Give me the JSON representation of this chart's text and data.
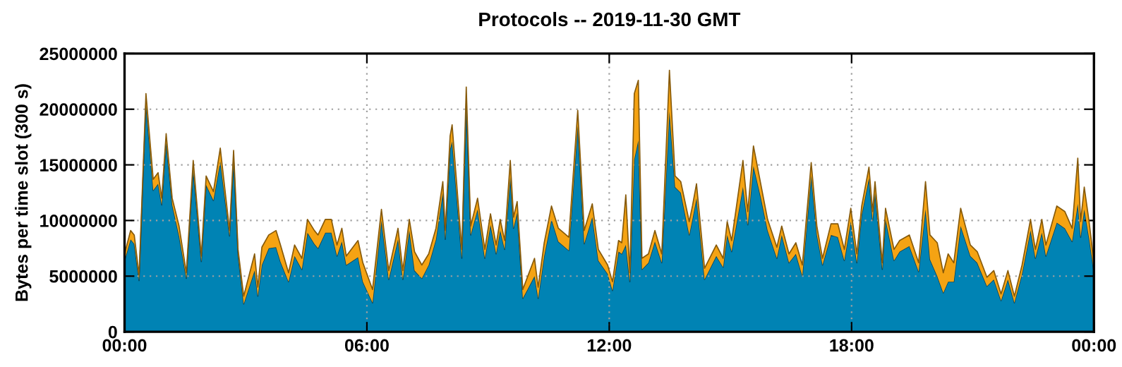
{
  "chart_data": {
    "type": "area",
    "stacked": true,
    "title": "Protocols -- 2019-11-30 GMT",
    "ylabel": "Bytes per time slot (300 s)",
    "x": [
      0,
      0.15,
      0.24,
      0.36,
      0.53,
      0.71,
      0.83,
      0.92,
      1.03,
      1.18,
      1.35,
      1.53,
      1.7,
      1.9,
      2.02,
      2.2,
      2.37,
      2.6,
      2.7,
      2.81,
      2.95,
      3.22,
      3.3,
      3.4,
      3.57,
      3.75,
      3.86,
      4.06,
      4.21,
      4.39,
      4.53,
      4.7,
      4.79,
      4.97,
      5.12,
      5.26,
      5.38,
      5.49,
      5.78,
      5.9,
      6.14,
      6.36,
      6.54,
      6.77,
      6.89,
      7.05,
      7.18,
      7.36,
      7.53,
      7.71,
      7.88,
      7.94,
      8.06,
      8.11,
      8.35,
      8.46,
      8.57,
      8.74,
      8.92,
      9.06,
      9.2,
      9.3,
      9.41,
      9.55,
      9.63,
      9.72,
      9.86,
      10.15,
      10.24,
      10.39,
      10.57,
      10.74,
      11.0,
      11.22,
      11.38,
      11.58,
      11.73,
      11.96,
      12.08,
      12.23,
      12.31,
      12.41,
      12.51,
      12.62,
      12.72,
      12.81,
      12.97,
      13.13,
      13.3,
      13.49,
      13.63,
      13.77,
      13.98,
      14.06,
      14.16,
      14.36,
      14.65,
      14.82,
      14.92,
      15.03,
      15.31,
      15.43,
      15.57,
      15.75,
      15.92,
      16.15,
      16.27,
      16.45,
      16.62,
      16.78,
      17.0,
      17.14,
      17.28,
      17.49,
      17.66,
      17.82,
      17.98,
      18.13,
      18.25,
      18.43,
      18.52,
      18.58,
      18.76,
      18.84,
      19.05,
      19.19,
      19.43,
      19.66,
      19.83,
      19.94,
      20.12,
      20.27,
      20.39,
      20.53,
      20.7,
      20.94,
      21.11,
      21.35,
      21.52,
      21.7,
      21.87,
      22.03,
      22.22,
      22.43,
      22.55,
      22.71,
      22.81,
      23.08,
      23.28,
      23.46,
      23.6,
      23.67,
      23.76,
      23.88,
      24.0
    ],
    "series": [
      {
        "color": "#0083b4",
        "values": [
          6400000.0,
          8300000.0,
          7900000.0,
          4600000.0,
          20500000.0,
          12700000.0,
          13300000.0,
          11400000.0,
          17000000.0,
          11400000.0,
          8600000.0,
          4800000.0,
          14600000.0,
          6300000.0,
          13200000.0,
          11800000.0,
          15300000.0,
          8600000.0,
          15500000.0,
          6900000.0,
          2500000.0,
          5500000.0,
          3200000.0,
          6000000.0,
          7500000.0,
          7600000.0,
          6300000.0,
          4500000.0,
          6800000.0,
          5600000.0,
          8900000.0,
          7900000.0,
          7500000.0,
          8900000.0,
          8900000.0,
          6800000.0,
          8100000.0,
          6000000.0,
          6700000.0,
          4500000.0,
          2600000.0,
          10000000.0,
          4700000.0,
          8300000.0,
          4700000.0,
          9100000.0,
          5500000.0,
          4800000.0,
          6000000.0,
          8300000.0,
          12500000.0,
          8300000.0,
          16400000.0,
          17100000.0,
          6600000.0,
          20500000.0,
          8700000.0,
          11000000.0,
          6600000.0,
          9600000.0,
          7000000.0,
          9100000.0,
          7400000.0,
          13900000.0,
          9300000.0,
          10700000.0,
          3000000.0,
          5000000.0,
          3000000.0,
          6800000.0,
          10100000.0,
          8100000.0,
          7300000.0,
          18500000.0,
          7900000.0,
          10300000.0,
          6400000.0,
          5200000.0,
          3700000.0,
          7200000.0,
          7000000.0,
          7800000.0,
          4500000.0,
          15500000.0,
          17200000.0,
          5600000.0,
          6200000.0,
          8100000.0,
          6200000.0,
          19800000.0,
          13000000.0,
          12500000.0,
          8700000.0,
          10100000.0,
          12000000.0,
          4700000.0,
          6800000.0,
          5800000.0,
          8700000.0,
          7200000.0,
          13000000.0,
          9600000.0,
          14900000.0,
          12100000.0,
          9100000.0,
          6600000.0,
          8700000.0,
          6200000.0,
          7000000.0,
          5000000.0,
          14000000.0,
          8700000.0,
          6000000.0,
          8700000.0,
          8500000.0,
          6400000.0,
          9900000.0,
          6200000.0,
          10500000.0,
          13800000.0,
          10000000.0,
          12500000.0,
          5600000.0,
          10100000.0,
          6400000.0,
          7200000.0,
          7700000.0,
          5400000.0,
          11000000.0,
          6500000.0,
          5000000.0,
          3500000.0,
          4500000.0,
          4500000.0,
          9500000.0,
          6800000.0,
          6200000.0,
          4100000.0,
          4700000.0,
          2800000.0,
          4700000.0,
          2600000.0,
          5200000.0,
          9100000.0,
          6600000.0,
          8900000.0,
          6800000.0,
          9800000.0,
          9300000.0,
          8100000.0,
          11500000.0,
          8500000.0,
          11000000.0,
          8400000.0,
          5400000.0
        ]
      },
      {
        "color": "#f5a313",
        "values": [
          600000.0,
          800000.0,
          800000.0,
          500000.0,
          900000.0,
          1000000.0,
          1000000.0,
          600000.0,
          800000.0,
          600000.0,
          900000.0,
          500000.0,
          800000.0,
          500000.0,
          800000.0,
          800000.0,
          1200000.0,
          500000.0,
          800000.0,
          500000.0,
          700000.0,
          1500000.0,
          800000.0,
          1600000.0,
          1200000.0,
          1500000.0,
          1500000.0,
          800000.0,
          1000000.0,
          1000000.0,
          1200000.0,
          1200000.0,
          1200000.0,
          1200000.0,
          1200000.0,
          1000000.0,
          1200000.0,
          800000.0,
          1500000.0,
          1700000.0,
          1200000.0,
          1000000.0,
          800000.0,
          1000000.0,
          800000.0,
          1000000.0,
          1700000.0,
          1200000.0,
          1000000.0,
          1000000.0,
          1000000.0,
          800000.0,
          1200000.0,
          1500000.0,
          800000.0,
          1500000.0,
          800000.0,
          1000000.0,
          800000.0,
          1000000.0,
          800000.0,
          1000000.0,
          800000.0,
          1500000.0,
          1000000.0,
          1000000.0,
          800000.0,
          1600000.0,
          1000000.0,
          1200000.0,
          1200000.0,
          1200000.0,
          1200000.0,
          1400000.0,
          1200000.0,
          1200000.0,
          1000000.0,
          800000.0,
          800000.0,
          1000000.0,
          1000000.0,
          4500000.0,
          800000.0,
          5900000.0,
          5400000.0,
          1000000.0,
          800000.0,
          1000000.0,
          800000.0,
          3700000.0,
          1000000.0,
          1000000.0,
          1200000.0,
          1200000.0,
          1300000.0,
          1000000.0,
          1000000.0,
          800000.0,
          1200000.0,
          1000000.0,
          2400000.0,
          1200000.0,
          1800000.0,
          1200000.0,
          1000000.0,
          1000000.0,
          800000.0,
          800000.0,
          1000000.0,
          1000000.0,
          1200000.0,
          800000.0,
          600000.0,
          1000000.0,
          1200000.0,
          1000000.0,
          1200000.0,
          800000.0,
          800000.0,
          1000000.0,
          800000.0,
          1000000.0,
          600000.0,
          1000000.0,
          1000000.0,
          1000000.0,
          1000000.0,
          800000.0,
          2500000.0,
          2200000.0,
          3000000.0,
          1800000.0,
          2500000.0,
          1700000.0,
          1600000.0,
          1000000.0,
          1000000.0,
          800000.0,
          800000.0,
          600000.0,
          800000.0,
          600000.0,
          800000.0,
          1000000.0,
          800000.0,
          1200000.0,
          1000000.0,
          1500000.0,
          1500000.0,
          1200000.0,
          4100000.0,
          1400000.0,
          2000000.0,
          1500000.0,
          800000.0
        ]
      }
    ],
    "xlim": [
      0,
      24
    ],
    "xticks": [
      {
        "value": 0,
        "label": "00:00"
      },
      {
        "value": 6,
        "label": "06:00"
      },
      {
        "value": 12,
        "label": "12:00"
      },
      {
        "value": 18,
        "label": "18:00"
      },
      {
        "value": 24,
        "label": "00:00"
      }
    ],
    "ylim": [
      0,
      25000000
    ],
    "yticks": [
      0,
      5000000,
      10000000,
      15000000,
      20000000,
      25000000
    ],
    "grid": true
  }
}
